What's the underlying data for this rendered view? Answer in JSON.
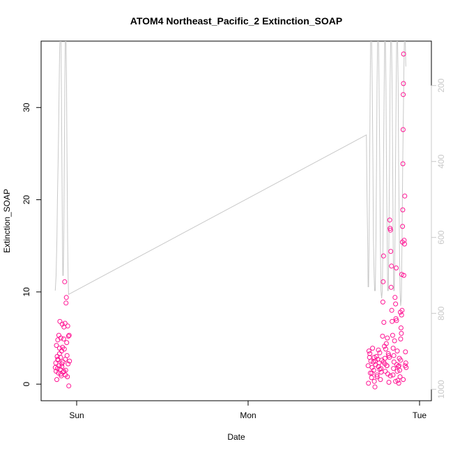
{
  "chart_data": {
    "type": "scatter",
    "title": "ATOM4 Northeast_Pacific_2 Extinction_SOAP",
    "xlabel": "Date",
    "ylabel": "Extinction_SOAP",
    "x_ticks": [
      "Sun",
      "Mon",
      "Tue"
    ],
    "x_range_days": [
      -0.14,
      2.05
    ],
    "ylim": [
      -1.8,
      37.2
    ],
    "y_ticks": [
      0,
      10,
      20,
      30
    ],
    "y2_ticks": [
      200,
      400,
      600,
      800,
      1000
    ],
    "y2_lim": [
      1030,
      83
    ],
    "y2_reversed": true,
    "grid": false,
    "point_color": "#ff1493",
    "line_color": "#c8c8c8",
    "axis_color_right": "#c8c8c8",
    "series": [
      {
        "type": "scatter",
        "points": [
          [
            -0.125,
            1.8
          ],
          [
            -0.122,
            2.3
          ],
          [
            -0.12,
            1.4
          ],
          [
            -0.118,
            4.2
          ],
          [
            -0.116,
            0.5
          ],
          [
            -0.114,
            3.0
          ],
          [
            -0.112,
            1.7
          ],
          [
            -0.11,
            4.8
          ],
          [
            -0.108,
            2.6
          ],
          [
            -0.106,
            1.2
          ],
          [
            -0.104,
            5.3
          ],
          [
            -0.102,
            2.0
          ],
          [
            -0.1,
            3.3
          ],
          [
            -0.098,
            6.8
          ],
          [
            -0.096,
            1.6
          ],
          [
            -0.094,
            2.9
          ],
          [
            -0.092,
            5.0
          ],
          [
            -0.09,
            0.9
          ],
          [
            -0.088,
            3.6
          ],
          [
            -0.086,
            1.9
          ],
          [
            -0.084,
            6.5
          ],
          [
            -0.082,
            4.0
          ],
          [
            -0.08,
            2.4
          ],
          [
            -0.078,
            1.3
          ],
          [
            -0.076,
            4.9
          ],
          [
            -0.074,
            6.2
          ],
          [
            -0.072,
            3.8
          ],
          [
            -0.07,
            11.1
          ],
          [
            -0.068,
            6.6
          ],
          [
            -0.066,
            2.7
          ],
          [
            -0.064,
            1.5
          ],
          [
            -0.062,
            8.8
          ],
          [
            -0.06,
            9.4
          ],
          [
            -0.058,
            4.5
          ],
          [
            -0.056,
            3.1
          ],
          [
            -0.054,
            0.8
          ],
          [
            -0.052,
            6.3
          ],
          [
            -0.05,
            2.2
          ],
          [
            -0.048,
            5.2
          ],
          [
            -0.046,
            -0.2
          ],
          [
            -0.044,
            5.3
          ],
          [
            -0.042,
            2.5
          ],
          [
            -0.092,
            1.1
          ],
          [
            -0.11,
            2.7
          ],
          [
            -0.074,
            1.4
          ],
          [
            -0.1,
            3.9
          ],
          [
            -0.066,
            1.0
          ],
          [
            -0.086,
            2.2
          ],
          [
            1.7,
            2.0
          ],
          [
            1.702,
            0.1
          ],
          [
            1.705,
            3.6
          ],
          [
            1.708,
            2.9
          ],
          [
            1.71,
            3.3
          ],
          [
            1.713,
            1.2
          ],
          [
            1.716,
            2.5
          ],
          [
            1.72,
            0.7
          ],
          [
            1.723,
            1.8
          ],
          [
            1.726,
            3.9
          ],
          [
            1.73,
            2.4
          ],
          [
            1.733,
            1.5
          ],
          [
            1.736,
            0.3
          ],
          [
            1.74,
            -0.3
          ],
          [
            1.744,
            2.1
          ],
          [
            1.748,
            3.0
          ],
          [
            1.752,
            1.0
          ],
          [
            1.756,
            2.7
          ],
          [
            1.76,
            1.9
          ],
          [
            1.764,
            2.3
          ],
          [
            1.768,
            3.4
          ],
          [
            1.772,
            0.5
          ],
          [
            1.776,
            1.3
          ],
          [
            1.78,
            2.6
          ],
          [
            1.784,
            5.2
          ],
          [
            1.786,
            8.9
          ],
          [
            1.788,
            11.1
          ],
          [
            1.79,
            13.9
          ],
          [
            1.792,
            6.7
          ],
          [
            1.795,
            4.1
          ],
          [
            1.798,
            2.8
          ],
          [
            1.8,
            1.4
          ],
          [
            1.803,
            3.8
          ],
          [
            1.806,
            4.4
          ],
          [
            1.809,
            2.0
          ],
          [
            1.812,
            5.0
          ],
          [
            1.815,
            1.1
          ],
          [
            1.818,
            3.3
          ],
          [
            1.821,
            0.2
          ],
          [
            1.824,
            2.9
          ],
          [
            1.826,
            17.8
          ],
          [
            1.828,
            16.9
          ],
          [
            1.83,
            16.7
          ],
          [
            1.832,
            14.4
          ],
          [
            1.834,
            10.5
          ],
          [
            1.836,
            12.8
          ],
          [
            1.838,
            8.0
          ],
          [
            1.84,
            6.8
          ],
          [
            1.843,
            5.3
          ],
          [
            1.846,
            3.9
          ],
          [
            1.848,
            1.7
          ],
          [
            1.851,
            2.4
          ],
          [
            1.854,
            4.7
          ],
          [
            1.857,
            9.4
          ],
          [
            1.86,
            8.7
          ],
          [
            1.862,
            7.1
          ],
          [
            1.864,
            12.6
          ],
          [
            1.866,
            6.9
          ],
          [
            1.868,
            2.1
          ],
          [
            1.87,
            3.6
          ],
          [
            1.873,
            0.4
          ],
          [
            1.876,
            1.9
          ],
          [
            1.879,
            0.1
          ],
          [
            1.882,
            2.8
          ],
          [
            1.884,
            1.5
          ],
          [
            1.886,
            0.8
          ],
          [
            1.888,
            7.8
          ],
          [
            1.89,
            4.9
          ],
          [
            1.892,
            6.1
          ],
          [
            1.894,
            5.5
          ],
          [
            1.896,
            11.9
          ],
          [
            1.898,
            8.0
          ],
          [
            1.9,
            15.4
          ],
          [
            1.901,
            17.1
          ],
          [
            1.902,
            18.9
          ],
          [
            1.903,
            23.9
          ],
          [
            1.904,
            27.6
          ],
          [
            1.905,
            31.4
          ],
          [
            1.906,
            32.6
          ],
          [
            1.907,
            35.8
          ],
          [
            1.908,
            11.8
          ],
          [
            1.91,
            15.6
          ],
          [
            1.912,
            15.2
          ],
          [
            1.914,
            20.4
          ],
          [
            1.916,
            2.0
          ],
          [
            1.918,
            3.5
          ],
          [
            1.92,
            2.3
          ],
          [
            1.922,
            1.8
          ],
          [
            1.742,
            2.5
          ],
          [
            1.76,
            3.7
          ],
          [
            1.775,
            1.7
          ],
          [
            1.79,
            2.4
          ],
          [
            1.81,
            2.0
          ],
          [
            1.83,
            0.9
          ],
          [
            1.85,
            3.1
          ],
          [
            1.87,
            1.4
          ],
          [
            1.89,
            2.6
          ],
          [
            1.905,
            0.5
          ],
          [
            1.722,
            1.2
          ],
          [
            1.735,
            2.9
          ],
          [
            1.752,
            0.8
          ],
          [
            1.768,
            1.6
          ],
          [
            1.798,
            2.2
          ],
          [
            1.82,
            3.1
          ],
          [
            1.845,
            1.0
          ],
          [
            1.86,
            0.3
          ],
          [
            1.88,
            2.0
          ],
          [
            1.895,
            7.5
          ]
        ]
      },
      {
        "type": "line",
        "points": [
          [
            -0.125,
            740
          ],
          [
            -0.12,
            700
          ],
          [
            -0.115,
            600
          ],
          [
            -0.112,
            500
          ],
          [
            -0.108,
            400
          ],
          [
            -0.105,
            300
          ],
          [
            -0.102,
            200
          ],
          [
            -0.099,
            100
          ],
          [
            -0.096,
            60
          ],
          [
            -0.092,
            60
          ],
          [
            -0.089,
            200
          ],
          [
            -0.086,
            400
          ],
          [
            -0.083,
            600
          ],
          [
            -0.081,
            700
          ],
          [
            -0.078,
            700
          ],
          [
            -0.075,
            600
          ],
          [
            -0.072,
            400
          ],
          [
            -0.069,
            200
          ],
          [
            -0.066,
            60
          ],
          [
            -0.062,
            60
          ],
          [
            -0.059,
            200
          ],
          [
            -0.056,
            400
          ],
          [
            -0.053,
            600
          ],
          [
            -0.05,
            700
          ],
          [
            -0.047,
            750
          ],
          [
            1.69,
            330
          ],
          [
            1.694,
            500
          ],
          [
            1.697,
            600
          ],
          [
            1.7,
            730
          ],
          [
            1.703,
            730
          ],
          [
            1.706,
            600
          ],
          [
            1.709,
            400
          ],
          [
            1.712,
            200
          ],
          [
            1.715,
            60
          ],
          [
            1.72,
            60
          ],
          [
            1.724,
            200
          ],
          [
            1.728,
            400
          ],
          [
            1.731,
            600
          ],
          [
            1.735,
            700
          ],
          [
            1.738,
            740
          ],
          [
            1.742,
            740
          ],
          [
            1.746,
            600
          ],
          [
            1.749,
            400
          ],
          [
            1.752,
            200
          ],
          [
            1.756,
            60
          ],
          [
            1.76,
            60
          ],
          [
            1.764,
            200
          ],
          [
            1.768,
            400
          ],
          [
            1.771,
            600
          ],
          [
            1.775,
            740
          ],
          [
            1.779,
            760
          ],
          [
            1.783,
            740
          ],
          [
            1.787,
            600
          ],
          [
            1.79,
            400
          ],
          [
            1.794,
            200
          ],
          [
            1.797,
            60
          ],
          [
            1.8,
            60
          ],
          [
            1.804,
            200
          ],
          [
            1.807,
            400
          ],
          [
            1.811,
            600
          ],
          [
            1.814,
            740
          ],
          [
            1.818,
            740
          ],
          [
            1.821,
            600
          ],
          [
            1.825,
            400
          ],
          [
            1.828,
            200
          ],
          [
            1.832,
            60
          ],
          [
            1.836,
            60
          ],
          [
            1.84,
            200
          ],
          [
            1.843,
            400
          ],
          [
            1.846,
            600
          ],
          [
            1.849,
            740
          ],
          [
            1.853,
            740
          ],
          [
            1.857,
            600
          ],
          [
            1.86,
            400
          ],
          [
            1.864,
            200
          ],
          [
            1.867,
            60
          ],
          [
            1.871,
            60
          ],
          [
            1.875,
            200
          ],
          [
            1.878,
            400
          ],
          [
            1.882,
            600
          ],
          [
            1.886,
            740
          ],
          [
            1.89,
            780
          ],
          [
            1.894,
            760
          ],
          [
            1.898,
            600
          ],
          [
            1.902,
            400
          ],
          [
            1.906,
            260
          ],
          [
            1.909,
            150
          ],
          [
            1.912,
            60
          ],
          [
            1.916,
            60
          ],
          [
            1.92,
            150
          ]
        ]
      }
    ]
  }
}
